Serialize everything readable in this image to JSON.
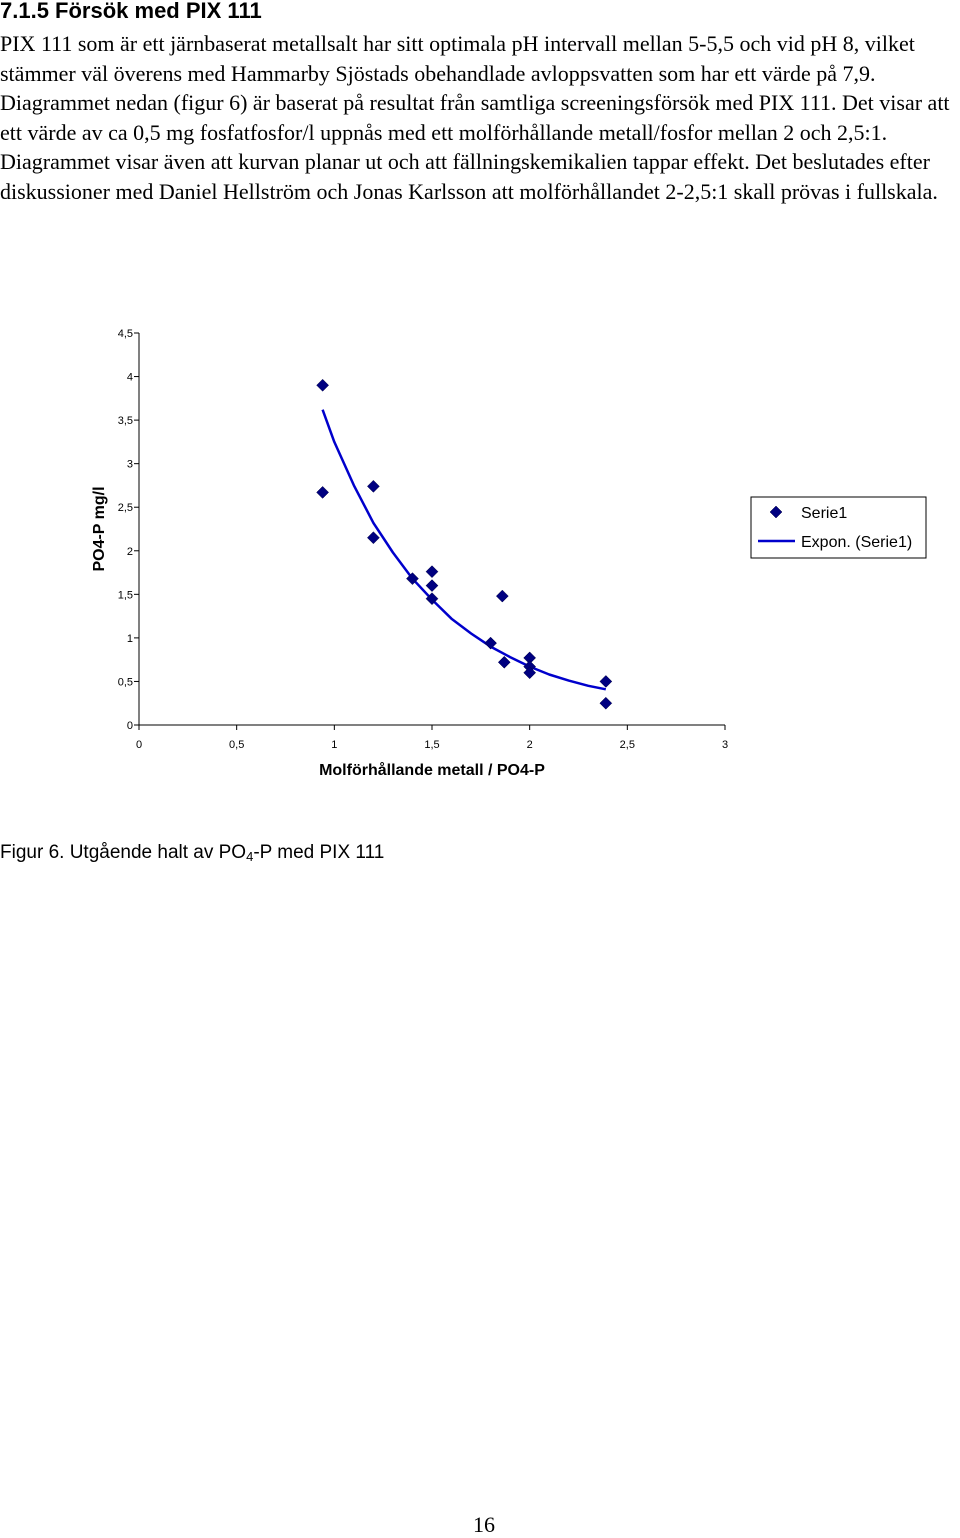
{
  "page": {
    "heading": "7.1.5 Försök med PIX 111",
    "body": "PIX 111 som är ett järnbaserat metallsalt har sitt optimala pH intervall mellan 5-5,5 och vid pH 8, vilket stämmer väl överens med Hammarby Sjöstads obehandlade avloppsvatten som har ett värde på 7,9. Diagrammet nedan (figur 6) är baserat på resultat från samtliga screeningsförsök med PIX 111. Det visar att ett värde av ca 0,5 mg fosfatfosfor/l uppnås med ett molförhållande metall/fosfor mellan 2 och 2,5:1. Diagrammet visar även att kurvan planar ut och att fällningskemikalien tappar effekt. Det beslutades efter diskussioner med Daniel Hellström och Jonas Karlsson att molförhållandet 2-2,5:1 skall prövas i fullskala.",
    "caption_before": "Figur 6. Utgående halt av PO",
    "caption_sub": "4",
    "caption_after": "-P med PIX 111",
    "page_number": "16"
  },
  "chart_data": {
    "type": "scatter",
    "xlabel": "Molförhållande metall / PO4-P",
    "ylabel": "PO4-P mg/l",
    "xlim": [
      0,
      3
    ],
    "ylim": [
      0,
      4.5
    ],
    "x_ticks": [
      "0",
      "0,5",
      "1",
      "1,5",
      "2",
      "2,5",
      "3"
    ],
    "y_ticks": [
      "0",
      "0,5",
      "1",
      "1,5",
      "2",
      "2,5",
      "3",
      "3,5",
      "4",
      "4,5"
    ],
    "grid": false,
    "legend_position": "right",
    "series": [
      {
        "name": "Serie1",
        "marker": "diamond",
        "color": "#000080",
        "points": [
          [
            0.94,
            3.9
          ],
          [
            0.94,
            2.67
          ],
          [
            1.2,
            2.74
          ],
          [
            1.2,
            2.15
          ],
          [
            1.4,
            1.68
          ],
          [
            1.5,
            1.76
          ],
          [
            1.5,
            1.6
          ],
          [
            1.5,
            1.45
          ],
          [
            1.86,
            1.48
          ],
          [
            1.8,
            0.94
          ],
          [
            1.87,
            0.72
          ],
          [
            2.0,
            0.77
          ],
          [
            2.0,
            0.67
          ],
          [
            2.0,
            0.6
          ],
          [
            2.39,
            0.5
          ],
          [
            2.39,
            0.25
          ]
        ]
      },
      {
        "name": "Expon. (Serie1)",
        "type": "line",
        "color": "#0000cc",
        "points": [
          [
            0.94,
            3.62
          ],
          [
            1.0,
            3.25
          ],
          [
            1.1,
            2.75
          ],
          [
            1.2,
            2.32
          ],
          [
            1.3,
            1.98
          ],
          [
            1.4,
            1.68
          ],
          [
            1.5,
            1.44
          ],
          [
            1.6,
            1.22
          ],
          [
            1.7,
            1.05
          ],
          [
            1.8,
            0.9
          ],
          [
            1.9,
            0.78
          ],
          [
            2.0,
            0.67
          ],
          [
            2.1,
            0.58
          ],
          [
            2.2,
            0.51
          ],
          [
            2.3,
            0.45
          ],
          [
            2.39,
            0.41
          ]
        ]
      }
    ]
  }
}
